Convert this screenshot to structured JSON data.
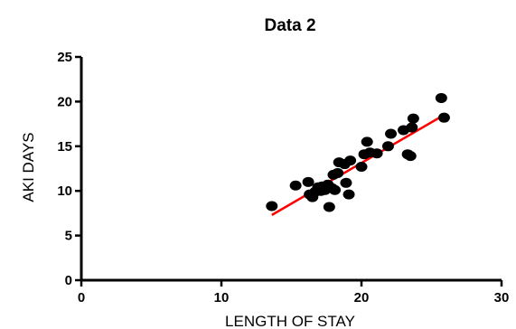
{
  "chart_data": {
    "type": "scatter",
    "title": "Data 2",
    "xlabel": "LENGTH OF STAY",
    "ylabel": "AKI DAYS",
    "xlim": [
      0,
      30
    ],
    "ylim": [
      0,
      25
    ],
    "xticks": [
      0,
      10,
      20,
      30
    ],
    "yticks": [
      0,
      5,
      10,
      15,
      20,
      25
    ],
    "grid": false,
    "legend": "none",
    "colors": {
      "points": "#000000",
      "fit_line": "#ff0000",
      "axes": "#000000"
    },
    "points": [
      {
        "x": 13.6,
        "y": 8.3
      },
      {
        "x": 15.3,
        "y": 10.6
      },
      {
        "x": 16.2,
        "y": 11.0
      },
      {
        "x": 16.3,
        "y": 9.6
      },
      {
        "x": 16.5,
        "y": 9.3
      },
      {
        "x": 16.7,
        "y": 9.9
      },
      {
        "x": 16.9,
        "y": 10.4
      },
      {
        "x": 17.1,
        "y": 10.0
      },
      {
        "x": 17.2,
        "y": 10.5
      },
      {
        "x": 17.4,
        "y": 10.1
      },
      {
        "x": 17.6,
        "y": 10.7
      },
      {
        "x": 17.7,
        "y": 8.2
      },
      {
        "x": 17.9,
        "y": 10.3
      },
      {
        "x": 18.1,
        "y": 10.1
      },
      {
        "x": 18.0,
        "y": 11.8
      },
      {
        "x": 18.3,
        "y": 12.0
      },
      {
        "x": 18.4,
        "y": 13.2
      },
      {
        "x": 18.8,
        "y": 13.0
      },
      {
        "x": 18.9,
        "y": 10.9
      },
      {
        "x": 19.1,
        "y": 9.6
      },
      {
        "x": 19.2,
        "y": 13.4
      },
      {
        "x": 20.0,
        "y": 12.7
      },
      {
        "x": 20.2,
        "y": 14.1
      },
      {
        "x": 20.4,
        "y": 15.5
      },
      {
        "x": 20.6,
        "y": 14.3
      },
      {
        "x": 21.1,
        "y": 14.2
      },
      {
        "x": 21.9,
        "y": 15.0
      },
      {
        "x": 22.1,
        "y": 16.4
      },
      {
        "x": 23.0,
        "y": 16.8
      },
      {
        "x": 23.3,
        "y": 14.1
      },
      {
        "x": 23.5,
        "y": 13.9
      },
      {
        "x": 23.6,
        "y": 17.1
      },
      {
        "x": 23.7,
        "y": 18.1
      },
      {
        "x": 25.7,
        "y": 20.4
      },
      {
        "x": 25.9,
        "y": 18.2
      }
    ],
    "fit_line": {
      "x": [
        13.6,
        26.0
      ],
      "y": [
        7.3,
        18.6
      ]
    }
  }
}
